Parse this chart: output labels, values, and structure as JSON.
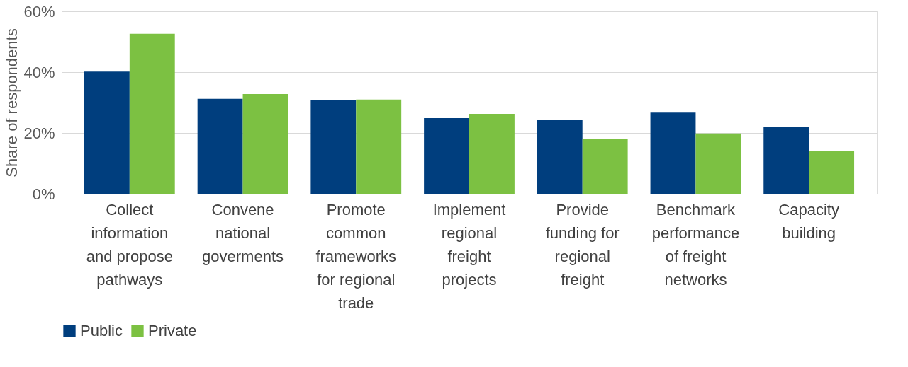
{
  "chart_data": {
    "type": "bar",
    "ylabel": "Share of respondents",
    "categories": [
      "Collect information and propose pathways",
      "Convene national goverments",
      "Promote common frameworks for regional trade",
      "Implement regional freight projects",
      "Provide funding for regional freight",
      "Benchmark performance of freight networks",
      "Capacity building"
    ],
    "series": [
      {
        "name": "Public",
        "color": "#003e7e",
        "values": [
          40.2,
          31.2,
          30.9,
          24.9,
          24.2,
          26.7,
          21.9
        ]
      },
      {
        "name": "Private",
        "color": "#7cc142",
        "values": [
          52.6,
          32.8,
          31.0,
          26.3,
          17.9,
          19.8,
          14.0
        ]
      }
    ],
    "ylim": [
      0,
      60
    ],
    "yticks": [
      {
        "value": 0,
        "label": "0%"
      },
      {
        "value": 20,
        "label": "20%"
      },
      {
        "value": 40,
        "label": "40%"
      },
      {
        "value": 60,
        "label": "60%"
      }
    ],
    "grid": "y",
    "legend": "bottom"
  }
}
